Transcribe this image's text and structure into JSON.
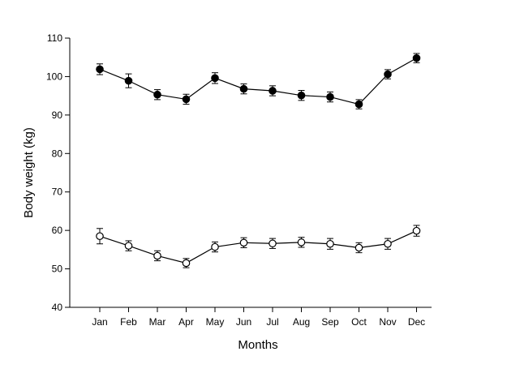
{
  "chart_data": {
    "type": "line",
    "xlabel": "Months",
    "ylabel": "Body weight (kg)",
    "ylim": [
      40,
      110
    ],
    "yticks": [
      40,
      50,
      60,
      70,
      80,
      90,
      100,
      110
    ],
    "categories": [
      "Jan",
      "Feb",
      "Mar",
      "Apr",
      "May",
      "Jun",
      "Jul",
      "Aug",
      "Sep",
      "Oct",
      "Nov",
      "Dec"
    ],
    "grid": false,
    "legend": "none",
    "series": [
      {
        "marker": "filled-circle",
        "values": [
          101.9,
          98.9,
          95.3,
          94.1,
          99.6,
          96.8,
          96.3,
          95.1,
          94.7,
          92.8,
          100.6,
          104.8
        ],
        "errors": [
          1.4,
          1.8,
          1.3,
          1.3,
          1.4,
          1.3,
          1.3,
          1.3,
          1.3,
          1.2,
          1.2,
          1.2
        ]
      },
      {
        "marker": "open-circle",
        "values": [
          58.5,
          56.0,
          53.4,
          51.5,
          55.7,
          56.8,
          56.6,
          56.9,
          56.5,
          55.5,
          56.5,
          59.9
        ],
        "errors": [
          2.0,
          1.3,
          1.3,
          1.2,
          1.3,
          1.3,
          1.3,
          1.3,
          1.4,
          1.3,
          1.4,
          1.4
        ]
      }
    ]
  }
}
